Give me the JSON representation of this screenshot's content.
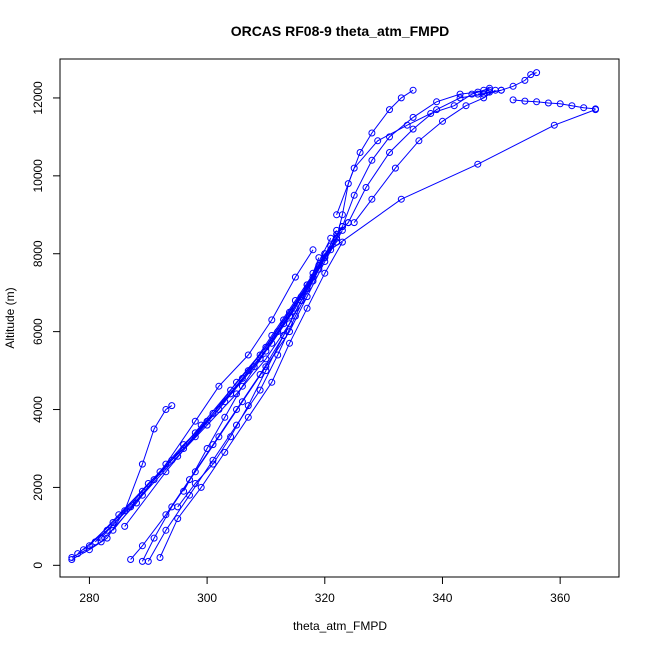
{
  "chart_data": {
    "type": "line",
    "title": "ORCAS RF08-9 theta_atm_FMPD",
    "xlabel": "theta_atm_FMPD",
    "ylabel": "Altitude (m)",
    "xlim": [
      275,
      370
    ],
    "ylim": [
      -300,
      13000
    ],
    "xticks": [
      280,
      300,
      320,
      340,
      360
    ],
    "yticks": [
      0,
      2000,
      4000,
      6000,
      8000,
      10000,
      12000
    ],
    "grid": false,
    "legend": "none",
    "series_color": "#0000ff",
    "series": [
      {
        "points": [
          [
            277,
            150
          ],
          [
            280,
            400
          ],
          [
            283,
            700
          ],
          [
            286,
            1400
          ],
          [
            289,
            2600
          ],
          [
            291,
            3500
          ],
          [
            293,
            4000
          ],
          [
            294,
            4100
          ]
        ]
      },
      {
        "points": [
          [
            277,
            200
          ],
          [
            282,
            600
          ],
          [
            288,
            1600
          ],
          [
            293,
            2600
          ],
          [
            298,
            3700
          ],
          [
            302,
            4600
          ],
          [
            307,
            5400
          ],
          [
            311,
            6300
          ],
          [
            315,
            7400
          ],
          [
            318,
            8100
          ]
        ]
      },
      {
        "points": [
          [
            278,
            300
          ],
          [
            283,
            900
          ],
          [
            289,
            1800
          ],
          [
            295,
            2800
          ],
          [
            300,
            3600
          ],
          [
            305,
            4400
          ],
          [
            310,
            5300
          ],
          [
            314,
            6200
          ],
          [
            317,
            7100
          ],
          [
            319,
            7900
          ]
        ]
      },
      {
        "points": [
          [
            279,
            400
          ],
          [
            284,
            1100
          ],
          [
            290,
            2100
          ],
          [
            296,
            3000
          ],
          [
            301,
            3900
          ],
          [
            306,
            4800
          ],
          [
            311,
            5700
          ],
          [
            315,
            6600
          ],
          [
            318,
            7500
          ],
          [
            321,
            8400
          ]
        ]
      },
      {
        "points": [
          [
            280,
            500
          ],
          [
            285,
            1300
          ],
          [
            292,
            2400
          ],
          [
            298,
            3300
          ],
          [
            303,
            4200
          ],
          [
            308,
            5100
          ],
          [
            312,
            6000
          ],
          [
            316,
            6900
          ],
          [
            320,
            7900
          ],
          [
            322,
            8600
          ]
        ]
      },
      {
        "points": [
          [
            281,
            600
          ],
          [
            287,
            1500
          ],
          [
            294,
            2700
          ],
          [
            299,
            3600
          ],
          [
            304,
            4500
          ],
          [
            309,
            5400
          ],
          [
            313,
            6300
          ],
          [
            317,
            7200
          ],
          [
            321,
            8100
          ],
          [
            323,
            8700
          ]
        ]
      },
      {
        "points": [
          [
            282,
            700
          ],
          [
            289,
            1900
          ],
          [
            296,
            3100
          ],
          [
            302,
            4000
          ],
          [
            307,
            5000
          ],
          [
            311,
            5900
          ],
          [
            315,
            6800
          ],
          [
            319,
            7700
          ],
          [
            322,
            8500
          ],
          [
            324,
            8800
          ]
        ]
      },
      {
        "points": [
          [
            284,
            900
          ],
          [
            291,
            2200
          ],
          [
            298,
            3400
          ],
          [
            304,
            4400
          ],
          [
            309,
            5300
          ],
          [
            313,
            6200
          ],
          [
            317,
            7100
          ],
          [
            320,
            7900
          ],
          [
            323,
            8700
          ]
        ]
      },
      {
        "points": [
          [
            286,
            1000
          ],
          [
            293,
            2400
          ],
          [
            300,
            3700
          ],
          [
            305,
            4700
          ],
          [
            310,
            5600
          ],
          [
            314,
            6500
          ],
          [
            318,
            7400
          ],
          [
            321,
            8200
          ]
        ]
      },
      {
        "points": [
          [
            289,
            100
          ],
          [
            291,
            700
          ],
          [
            294,
            1500
          ],
          [
            298,
            2400
          ],
          [
            302,
            3300
          ],
          [
            306,
            4200
          ],
          [
            310,
            5100
          ],
          [
            314,
            6000
          ],
          [
            317,
            6900
          ],
          [
            320,
            7800
          ],
          [
            323,
            8600
          ]
        ]
      },
      {
        "points": [
          [
            287,
            150
          ],
          [
            289,
            500
          ],
          [
            293,
            1300
          ],
          [
            297,
            2200
          ],
          [
            301,
            3100
          ],
          [
            305,
            4000
          ],
          [
            309,
            4900
          ],
          [
            313,
            5900
          ],
          [
            316,
            6800
          ],
          [
            319,
            7600
          ],
          [
            322,
            8400
          ]
        ]
      },
      {
        "points": [
          [
            290,
            100
          ],
          [
            293,
            900
          ],
          [
            297,
            1800
          ],
          [
            301,
            2700
          ],
          [
            305,
            3600
          ],
          [
            309,
            4500
          ],
          [
            312,
            5400
          ],
          [
            315,
            6400
          ],
          [
            318,
            7300
          ],
          [
            321,
            8200
          ]
        ]
      },
      {
        "points": [
          [
            292,
            200
          ],
          [
            295,
            1200
          ],
          [
            299,
            2000
          ],
          [
            303,
            2900
          ],
          [
            307,
            3800
          ],
          [
            311,
            4700
          ],
          [
            314,
            5700
          ],
          [
            317,
            6600
          ],
          [
            320,
            7500
          ],
          [
            323,
            8300
          ]
        ]
      },
      {
        "points": [
          [
            295,
            1500
          ],
          [
            298,
            2100
          ],
          [
            301,
            2600
          ],
          [
            304,
            3300
          ],
          [
            307,
            4100
          ],
          [
            310,
            5000
          ],
          [
            313,
            5900
          ],
          [
            316,
            6800
          ],
          [
            319,
            7700
          ],
          [
            322,
            8400
          ]
        ]
      },
      {
        "points": [
          [
            296,
            1900
          ],
          [
            300,
            3000
          ],
          [
            303,
            3800
          ],
          [
            306,
            4600
          ],
          [
            310,
            5500
          ],
          [
            314,
            6400
          ],
          [
            317,
            7200
          ],
          [
            320,
            8000
          ],
          [
            322,
            8300
          ]
        ]
      },
      {
        "points": [
          [
            322,
            8400
          ],
          [
            323,
            9000
          ],
          [
            324,
            9800
          ],
          [
            326,
            10600
          ],
          [
            328,
            11100
          ],
          [
            331,
            11700
          ],
          [
            333,
            12000
          ],
          [
            335,
            12200
          ]
        ]
      },
      {
        "points": [
          [
            322,
            9000
          ],
          [
            325,
            10200
          ],
          [
            329,
            10900
          ],
          [
            334,
            11300
          ],
          [
            338,
            11600
          ],
          [
            342,
            11800
          ],
          [
            345,
            12100
          ],
          [
            347,
            12200
          ],
          [
            348,
            12250
          ]
        ]
      },
      {
        "points": [
          [
            323,
            8700
          ],
          [
            325,
            9500
          ],
          [
            328,
            10400
          ],
          [
            331,
            11000
          ],
          [
            335,
            11500
          ],
          [
            339,
            11900
          ],
          [
            343,
            12100
          ],
          [
            346,
            12150
          ],
          [
            348,
            12200
          ]
        ]
      },
      {
        "points": [
          [
            324,
            8800
          ],
          [
            327,
            9700
          ],
          [
            331,
            10600
          ],
          [
            335,
            11200
          ],
          [
            339,
            11700
          ],
          [
            343,
            12000
          ],
          [
            347,
            12100
          ],
          [
            350,
            12200
          ]
        ]
      },
      {
        "points": [
          [
            325,
            8800
          ],
          [
            328,
            9400
          ],
          [
            332,
            10200
          ],
          [
            336,
            10900
          ],
          [
            340,
            11400
          ],
          [
            344,
            11800
          ],
          [
            347,
            12000
          ],
          [
            349,
            12200
          ]
        ]
      },
      {
        "points": [
          [
            320,
            8000
          ],
          [
            333,
            9400
          ],
          [
            346,
            10300
          ],
          [
            359,
            11300
          ],
          [
            366,
            11700
          ]
        ]
      },
      {
        "points": [
          [
            346,
            12100
          ],
          [
            348,
            12150
          ],
          [
            350,
            12200
          ],
          [
            352,
            12300
          ],
          [
            354,
            12450
          ],
          [
            355,
            12600
          ],
          [
            356,
            12650
          ]
        ]
      },
      {
        "points": [
          [
            352,
            11950
          ],
          [
            354,
            11920
          ],
          [
            356,
            11900
          ],
          [
            358,
            11870
          ],
          [
            360,
            11850
          ],
          [
            362,
            11800
          ],
          [
            364,
            11750
          ],
          [
            366,
            11720
          ]
        ]
      }
    ]
  }
}
